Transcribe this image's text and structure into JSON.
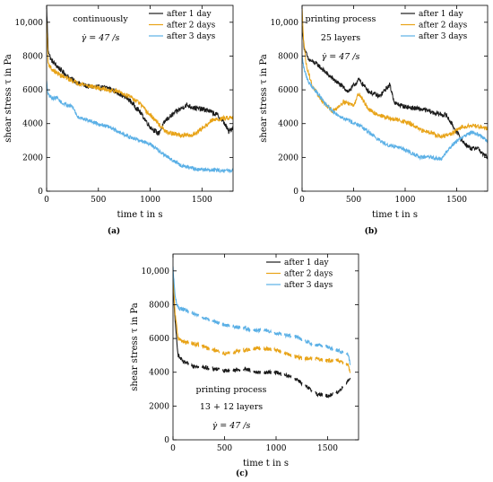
{
  "colors": {
    "s1": "#1a1a1a",
    "s2": "#e8a317",
    "s3": "#5bb0e6"
  },
  "chart_data": [
    {
      "id": "a",
      "type": "line",
      "panel_label": "(a)",
      "xlabel": "time t in s",
      "ylabel": "shear stress τ in Pa",
      "xlim": [
        0,
        1800
      ],
      "ylim": [
        0,
        11000
      ],
      "xticks": [
        0,
        500,
        1000,
        1500
      ],
      "yticks": [
        0,
        2000,
        4000,
        6000,
        8000,
        10000
      ],
      "ytick_labels": [
        "0",
        "2000",
        "4000",
        "6000",
        "8000",
        "10,000"
      ],
      "xtick_labels": [
        "0",
        "500",
        "1000",
        "1500"
      ],
      "annotations": [
        "continuously",
        "γ̇ = 47 /s"
      ],
      "legend_position": "top-right",
      "grid": false,
      "series": [
        {
          "name": "after 1 day",
          "color": "#1a1a1a",
          "noise": 150,
          "dashed": false,
          "points": [
            [
              0,
              11000
            ],
            [
              15,
              8400
            ],
            [
              40,
              7800
            ],
            [
              100,
              7400
            ],
            [
              200,
              6800
            ],
            [
              300,
              6400
            ],
            [
              400,
              6200
            ],
            [
              500,
              6150
            ],
            [
              600,
              6100
            ],
            [
              700,
              5800
            ],
            [
              800,
              5400
            ],
            [
              900,
              4700
            ],
            [
              1000,
              3800
            ],
            [
              1080,
              3400
            ],
            [
              1150,
              4200
            ],
            [
              1250,
              4700
            ],
            [
              1350,
              5100
            ],
            [
              1450,
              4900
            ],
            [
              1550,
              4800
            ],
            [
              1650,
              4500
            ],
            [
              1720,
              4000
            ],
            [
              1760,
              3500
            ],
            [
              1800,
              3800
            ]
          ]
        },
        {
          "name": "after 2 days",
          "color": "#e8a317",
          "noise": 130,
          "dashed": false,
          "points": [
            [
              0,
              10000
            ],
            [
              15,
              7600
            ],
            [
              50,
              7200
            ],
            [
              150,
              6800
            ],
            [
              300,
              6400
            ],
            [
              500,
              6100
            ],
            [
              700,
              5900
            ],
            [
              800,
              5600
            ],
            [
              900,
              5200
            ],
            [
              950,
              4800
            ],
            [
              1050,
              4200
            ],
            [
              1150,
              3500
            ],
            [
              1300,
              3300
            ],
            [
              1400,
              3300
            ],
            [
              1500,
              3700
            ],
            [
              1600,
              4200
            ],
            [
              1700,
              4300
            ],
            [
              1800,
              4400
            ]
          ]
        },
        {
          "name": "after 3 days",
          "color": "#5bb0e6",
          "noise": 110,
          "dashed": false,
          "points": [
            [
              0,
              6500
            ],
            [
              15,
              5700
            ],
            [
              60,
              5500
            ],
            [
              100,
              5550
            ],
            [
              150,
              5200
            ],
            [
              250,
              5000
            ],
            [
              300,
              4400
            ],
            [
              400,
              4200
            ],
            [
              500,
              4000
            ],
            [
              600,
              3800
            ],
            [
              700,
              3500
            ],
            [
              800,
              3200
            ],
            [
              900,
              3000
            ],
            [
              1000,
              2800
            ],
            [
              1100,
              2300
            ],
            [
              1200,
              1900
            ],
            [
              1300,
              1500
            ],
            [
              1450,
              1300
            ],
            [
              1600,
              1250
            ],
            [
              1800,
              1200
            ]
          ]
        }
      ]
    },
    {
      "id": "b",
      "type": "line",
      "panel_label": "(b)",
      "xlabel": "time t in s",
      "ylabel": "shear stress τ in Pa",
      "xlim": [
        0,
        1800
      ],
      "ylim": [
        0,
        11000
      ],
      "xticks": [
        0,
        500,
        1000,
        1500
      ],
      "yticks": [
        0,
        2000,
        4000,
        6000,
        8000,
        10000
      ],
      "ytick_labels": [
        "0",
        "2000",
        "4000",
        "6000",
        "8000",
        "10,000"
      ],
      "xtick_labels": [
        "0",
        "500",
        "1000",
        "1500"
      ],
      "annotations": [
        "printing process",
        "25 layers",
        "γ̇ = 47 /s"
      ],
      "legend_position": "top-right",
      "grid": false,
      "series": [
        {
          "name": "after 1 day",
          "color": "#1a1a1a",
          "noise": 140,
          "dashed": false,
          "points": [
            [
              0,
              9700
            ],
            [
              20,
              8500
            ],
            [
              60,
              7800
            ],
            [
              150,
              7500
            ],
            [
              250,
              6900
            ],
            [
              350,
              6400
            ],
            [
              450,
              5900
            ],
            [
              550,
              6600
            ],
            [
              650,
              5900
            ],
            [
              750,
              5600
            ],
            [
              850,
              6300
            ],
            [
              900,
              5200
            ],
            [
              1000,
              5000
            ],
            [
              1100,
              4900
            ],
            [
              1200,
              4800
            ],
            [
              1300,
              4600
            ],
            [
              1400,
              4500
            ],
            [
              1450,
              4000
            ],
            [
              1500,
              3500
            ],
            [
              1550,
              3000
            ],
            [
              1600,
              2700
            ],
            [
              1650,
              2500
            ],
            [
              1700,
              2600
            ],
            [
              1750,
              2200
            ],
            [
              1800,
              2000
            ]
          ]
        },
        {
          "name": "after 2 days",
          "color": "#e8a317",
          "noise": 130,
          "dashed": false,
          "points": [
            [
              0,
              10800
            ],
            [
              15,
              9000
            ],
            [
              40,
              7500
            ],
            [
              100,
              6200
            ],
            [
              200,
              5300
            ],
            [
              300,
              4700
            ],
            [
              400,
              5300
            ],
            [
              500,
              5100
            ],
            [
              550,
              5800
            ],
            [
              650,
              4800
            ],
            [
              750,
              4500
            ],
            [
              850,
              4300
            ],
            [
              950,
              4200
            ],
            [
              1050,
              4000
            ],
            [
              1150,
              3600
            ],
            [
              1250,
              3500
            ],
            [
              1350,
              3200
            ],
            [
              1450,
              3400
            ],
            [
              1550,
              3800
            ],
            [
              1650,
              3900
            ],
            [
              1750,
              3800
            ],
            [
              1800,
              3700
            ]
          ]
        },
        {
          "name": "after 3 days",
          "color": "#5bb0e6",
          "noise": 120,
          "dashed": false,
          "points": [
            [
              0,
              8000
            ],
            [
              20,
              7200
            ],
            [
              60,
              6500
            ],
            [
              150,
              5800
            ],
            [
              250,
              5000
            ],
            [
              350,
              4500
            ],
            [
              450,
              4200
            ],
            [
              550,
              3900
            ],
            [
              650,
              3500
            ],
            [
              750,
              3000
            ],
            [
              850,
              2700
            ],
            [
              950,
              2600
            ],
            [
              1050,
              2300
            ],
            [
              1150,
              2000
            ],
            [
              1250,
              2000
            ],
            [
              1350,
              1900
            ],
            [
              1450,
              2700
            ],
            [
              1550,
              3200
            ],
            [
              1650,
              3500
            ],
            [
              1750,
              3200
            ],
            [
              1800,
              3000
            ]
          ]
        }
      ]
    },
    {
      "id": "c",
      "type": "line",
      "panel_label": "(c)",
      "xlabel": "time t in s",
      "ylabel": "shear stress τ in Pa",
      "xlim": [
        0,
        1800
      ],
      "ylim": [
        0,
        11000
      ],
      "xticks": [
        0,
        500,
        1000,
        1500
      ],
      "yticks": [
        0,
        2000,
        4000,
        6000,
        8000,
        10000
      ],
      "ytick_labels": [
        "0",
        "2000",
        "4000",
        "6000",
        "8000",
        "10,000"
      ],
      "xtick_labels": [
        "0",
        "500",
        "1000",
        "1500"
      ],
      "annotations": [
        "printing process",
        "13 + 12 layers",
        "γ̇ = 47 /s"
      ],
      "legend_position": "top-right",
      "grid": false,
      "series": [
        {
          "name": "after 1 day",
          "color": "#1a1a1a",
          "noise": 110,
          "dashed": true,
          "points": [
            [
              0,
              9500
            ],
            [
              20,
              7000
            ],
            [
              50,
              5000
            ],
            [
              100,
              4600
            ],
            [
              200,
              4400
            ],
            [
              300,
              4300
            ],
            [
              400,
              4200
            ],
            [
              500,
              4100
            ],
            [
              600,
              4100
            ],
            [
              700,
              4200
            ],
            [
              800,
              4000
            ],
            [
              900,
              4000
            ],
            [
              1000,
              4000
            ],
            [
              1100,
              3800
            ],
            [
              1200,
              3600
            ],
            [
              1300,
              3100
            ],
            [
              1400,
              2700
            ],
            [
              1500,
              2600
            ],
            [
              1600,
              2800
            ],
            [
              1700,
              3500
            ],
            [
              1720,
              3700
            ]
          ]
        },
        {
          "name": "after 2 days",
          "color": "#e8a317",
          "noise": 110,
          "dashed": true,
          "points": [
            [
              0,
              9800
            ],
            [
              20,
              7500
            ],
            [
              50,
              6000
            ],
            [
              100,
              5800
            ],
            [
              200,
              5700
            ],
            [
              300,
              5500
            ],
            [
              400,
              5300
            ],
            [
              500,
              5100
            ],
            [
              600,
              5200
            ],
            [
              700,
              5300
            ],
            [
              800,
              5400
            ],
            [
              900,
              5400
            ],
            [
              1000,
              5300
            ],
            [
              1100,
              5100
            ],
            [
              1200,
              4900
            ],
            [
              1300,
              4800
            ],
            [
              1400,
              4800
            ],
            [
              1500,
              4700
            ],
            [
              1600,
              4700
            ],
            [
              1700,
              4400
            ],
            [
              1720,
              4000
            ]
          ]
        },
        {
          "name": "after 3 days",
          "color": "#5bb0e6",
          "noise": 110,
          "dashed": true,
          "points": [
            [
              0,
              10200
            ],
            [
              20,
              8500
            ],
            [
              50,
              7800
            ],
            [
              100,
              7700
            ],
            [
              200,
              7500
            ],
            [
              300,
              7200
            ],
            [
              400,
              7000
            ],
            [
              500,
              6800
            ],
            [
              600,
              6700
            ],
            [
              700,
              6600
            ],
            [
              800,
              6500
            ],
            [
              900,
              6500
            ],
            [
              1000,
              6300
            ],
            [
              1100,
              6200
            ],
            [
              1200,
              6100
            ],
            [
              1300,
              5800
            ],
            [
              1400,
              5600
            ],
            [
              1500,
              5500
            ],
            [
              1600,
              5300
            ],
            [
              1700,
              5000
            ],
            [
              1720,
              4500
            ]
          ]
        }
      ]
    }
  ]
}
